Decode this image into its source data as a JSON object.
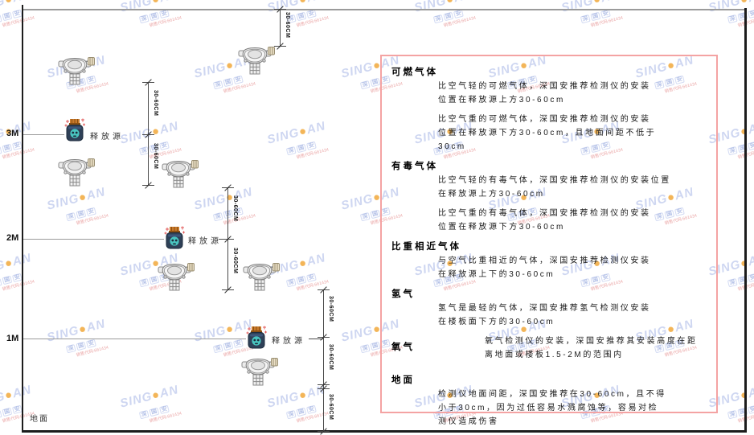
{
  "watermark": {
    "brand_left": "SING",
    "dot": "●",
    "brand_right": "AN",
    "cn": "深国安",
    "small_red": "销售代码:661434",
    "color_blue": "#c6d0ef",
    "color_orange": "#f2a93b",
    "color_red": "#e89a9a"
  },
  "labels": {
    "dim": "30-60CM",
    "release_source": "释放源",
    "ground": "地面",
    "axis_3m": "3M",
    "axis_2m": "2M",
    "axis_1m": "1M"
  },
  "panel": {
    "border_color": "#f4a3a3",
    "sections": [
      {
        "heading": "可燃气体",
        "paras": [
          [
            "比空气轻的可燃气体，深国安推荐检测仪的安装",
            "位置在释放源上方30-60cm"
          ],
          [
            "比空气重的可燃气体，深国安推荐检测仪的安装",
            "位置在释放源下方30-60cm，且地面间距不低于",
            "30cm"
          ]
        ]
      },
      {
        "heading": "有毒气体",
        "paras": [
          [
            "比空气轻的有毒气体，深国安推荐检测仪的安装位置",
            "在释放源上方30-60cm"
          ],
          [
            "比空气重的有毒气体，深国安推荐检测仪的安装",
            "位置在释放源下方30-60cm"
          ]
        ]
      },
      {
        "heading": "比重相近气体",
        "paras": [
          [
            "与空气比重相近的气体，深国安推荐检测仪安装",
            "在释放源上下的30-60cm"
          ]
        ]
      },
      {
        "heading": "氢气",
        "paras": [
          [
            "氢气是最轻的气体，深国安推荐氢气检测仪安装",
            "在楼板面下方的30-60cm"
          ]
        ]
      },
      {
        "heading": "氧气",
        "inline": true,
        "paras": [
          [
            "氧气检测仪的安装，深国安推荐其安装高度在距",
            "离地面或楼板1.5-2M的范围内"
          ]
        ]
      },
      {
        "heading": "地面",
        "paras": [
          [
            "检测仪地面间距，深国安推荐在30-60cm，且不得",
            "小于30cm，因为过低容易水溅腐蚀等，容易对检",
            "测仪造成伤害"
          ]
        ]
      }
    ]
  }
}
